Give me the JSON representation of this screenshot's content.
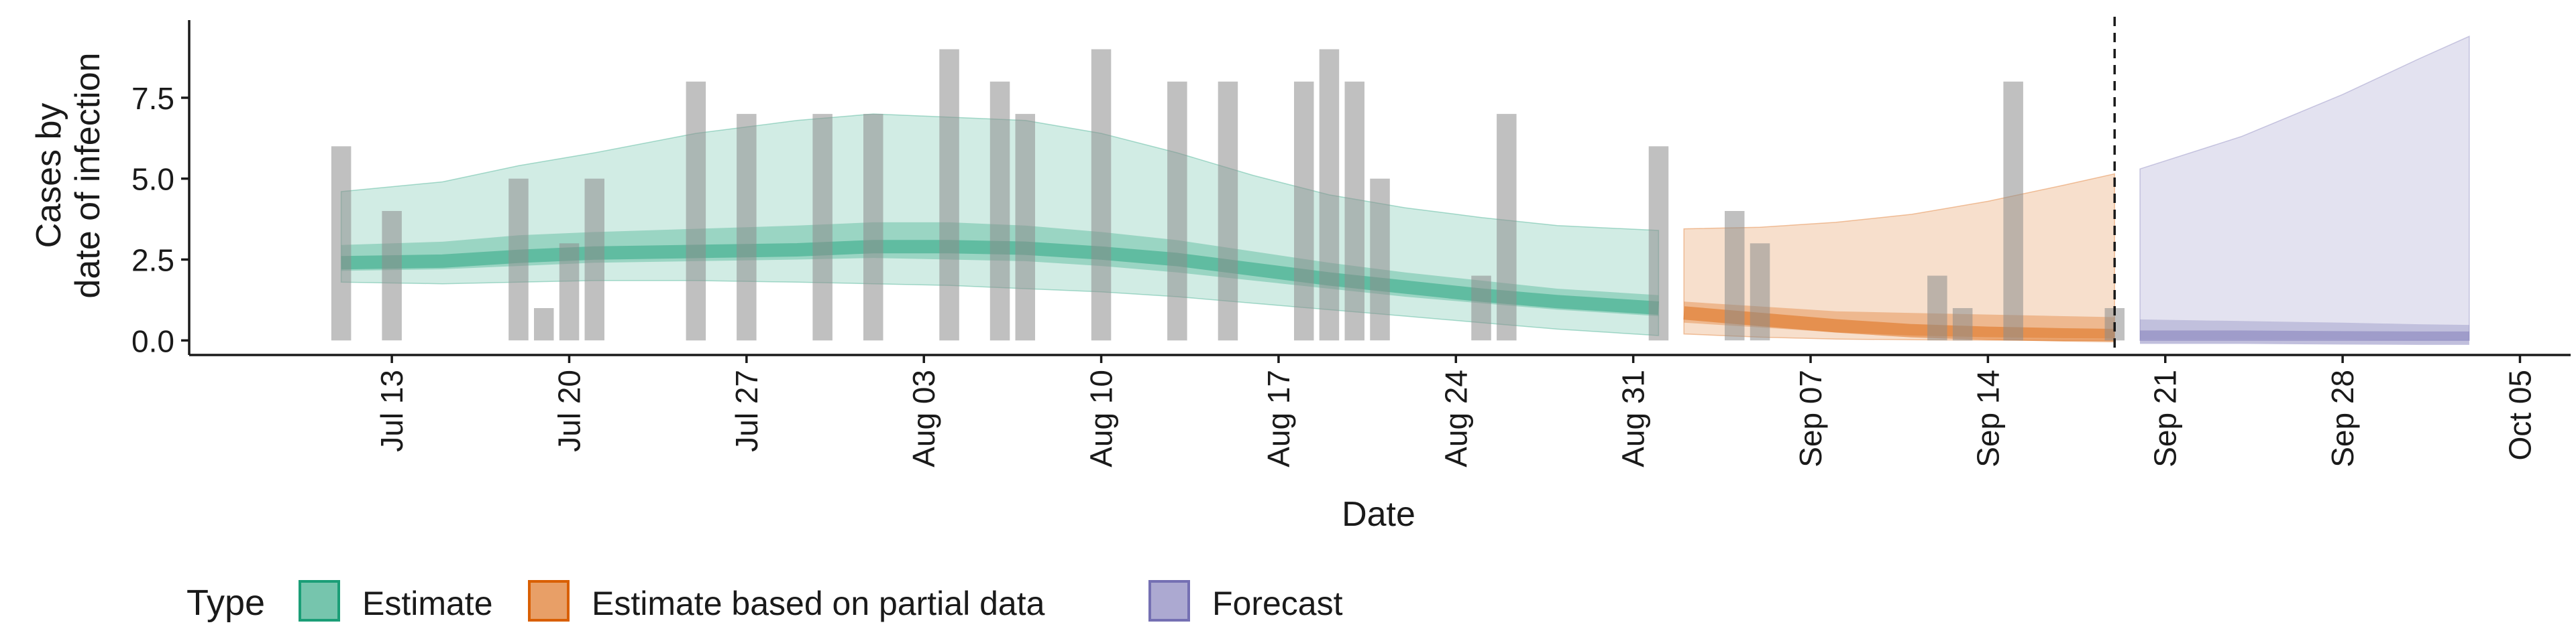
{
  "chart_data": {
    "type": "area",
    "xlabel": "Date",
    "ylabel_lines": [
      "Cases by",
      "date of infection"
    ],
    "y_ticks": [
      0.0,
      2.5,
      5.0,
      7.5
    ],
    "y_tick_labels": [
      "0.0",
      "2.5",
      "5.0",
      "7.5"
    ],
    "ylim": [
      -0.45,
      9.9
    ],
    "xlim": [
      "2020-07-05",
      "2020-10-07"
    ],
    "x_ticks": [
      "2020-07-13",
      "2020-07-20",
      "2020-07-27",
      "2020-08-03",
      "2020-08-10",
      "2020-08-17",
      "2020-08-24",
      "2020-08-31",
      "2020-09-07",
      "2020-09-14",
      "2020-09-21",
      "2020-09-28",
      "2020-10-05"
    ],
    "x_tick_labels": [
      "Jul 13",
      "Jul 20",
      "Jul 27",
      "Aug 03",
      "Aug 10",
      "Aug 17",
      "Aug 24",
      "Aug 31",
      "Sep 07",
      "Sep 14",
      "Sep 21",
      "Sep 28",
      "Oct 05"
    ],
    "vline_date": "2020-09-19",
    "bars": {
      "color": "#8c8c8c",
      "dates": [
        "2020-07-11",
        "2020-07-13",
        "2020-07-18",
        "2020-07-19",
        "2020-07-20",
        "2020-07-21",
        "2020-07-25",
        "2020-07-27",
        "2020-07-30",
        "2020-08-01",
        "2020-08-04",
        "2020-08-06",
        "2020-08-07",
        "2020-08-10",
        "2020-08-13",
        "2020-08-15",
        "2020-08-18",
        "2020-08-19",
        "2020-08-20",
        "2020-08-21",
        "2020-08-25",
        "2020-08-26",
        "2020-09-01",
        "2020-09-04",
        "2020-09-05",
        "2020-09-12",
        "2020-09-13",
        "2020-09-15",
        "2020-09-19"
      ],
      "values": [
        6,
        4,
        5,
        1,
        3,
        5,
        8,
        7,
        7,
        7,
        9,
        8,
        7,
        9,
        8,
        8,
        8,
        9,
        8,
        5,
        2,
        7,
        6,
        4,
        3,
        2,
        1,
        8,
        1
      ]
    },
    "series": [
      {
        "name": "Estimate",
        "color": "#1b9e77",
        "fill": "#1b9e77",
        "x": [
          "2020-07-11",
          "2020-07-15",
          "2020-07-18",
          "2020-07-21",
          "2020-07-25",
          "2020-07-29",
          "2020-08-01",
          "2020-08-04",
          "2020-08-07",
          "2020-08-10",
          "2020-08-13",
          "2020-08-16",
          "2020-08-19",
          "2020-08-22",
          "2020-08-25",
          "2020-08-28",
          "2020-09-01"
        ],
        "median": [
          2.4,
          2.45,
          2.6,
          2.7,
          2.75,
          2.8,
          2.9,
          2.9,
          2.85,
          2.7,
          2.5,
          2.2,
          1.9,
          1.65,
          1.4,
          1.2,
          1.0
        ],
        "lower50": [
          2.15,
          2.2,
          2.3,
          2.4,
          2.45,
          2.5,
          2.55,
          2.5,
          2.45,
          2.3,
          2.1,
          1.85,
          1.6,
          1.35,
          1.15,
          0.95,
          0.75
        ],
        "upper50": [
          2.95,
          3.05,
          3.25,
          3.35,
          3.45,
          3.55,
          3.65,
          3.65,
          3.55,
          3.35,
          3.1,
          2.75,
          2.4,
          2.1,
          1.85,
          1.6,
          1.4
        ],
        "lower90": [
          1.8,
          1.75,
          1.8,
          1.85,
          1.85,
          1.8,
          1.75,
          1.7,
          1.6,
          1.5,
          1.35,
          1.15,
          0.95,
          0.75,
          0.55,
          0.35,
          0.15
        ],
        "upper90": [
          4.6,
          4.9,
          5.4,
          5.8,
          6.4,
          6.8,
          7.0,
          6.9,
          6.8,
          6.4,
          5.8,
          5.1,
          4.5,
          4.1,
          3.8,
          3.55,
          3.4
        ]
      },
      {
        "name": "Estimate based on partial data",
        "color": "#d95f02",
        "fill": "#d95f02",
        "x": [
          "2020-09-02",
          "2020-09-05",
          "2020-09-08",
          "2020-09-11",
          "2020-09-14",
          "2020-09-17",
          "2020-09-19"
        ],
        "median": [
          0.85,
          0.65,
          0.45,
          0.3,
          0.22,
          0.17,
          0.15
        ],
        "lower50": [
          0.55,
          0.4,
          0.25,
          0.15,
          0.1,
          0.07,
          0.06
        ],
        "upper50": [
          1.2,
          1.05,
          0.9,
          0.85,
          0.8,
          0.75,
          0.72
        ],
        "lower90": [
          0.2,
          0.1,
          0.04,
          0.02,
          0.01,
          0.0,
          0.0
        ],
        "upper90": [
          3.45,
          3.5,
          3.65,
          3.9,
          4.3,
          4.8,
          5.15
        ]
      },
      {
        "name": "Forecast",
        "color": "#7570b3",
        "fill": "#7570b3",
        "x": [
          "2020-09-20",
          "2020-09-24",
          "2020-09-28",
          "2020-10-01",
          "2020-10-03"
        ],
        "median": [
          0.1,
          0.1,
          0.08,
          0.07,
          0.07
        ],
        "lower50": [
          0.02,
          0.02,
          0.02,
          0.01,
          0.01
        ],
        "upper50": [
          0.65,
          0.6,
          0.55,
          0.5,
          0.48
        ],
        "lower90": [
          0.0,
          0.0,
          0.0,
          0.0,
          0.0
        ],
        "upper90": [
          5.3,
          6.3,
          7.6,
          8.7,
          9.4
        ]
      }
    ],
    "legend": {
      "title": "Type",
      "position": "bottom-left",
      "entries": [
        "Estimate",
        "Estimate based on partial data",
        "Forecast"
      ]
    }
  }
}
